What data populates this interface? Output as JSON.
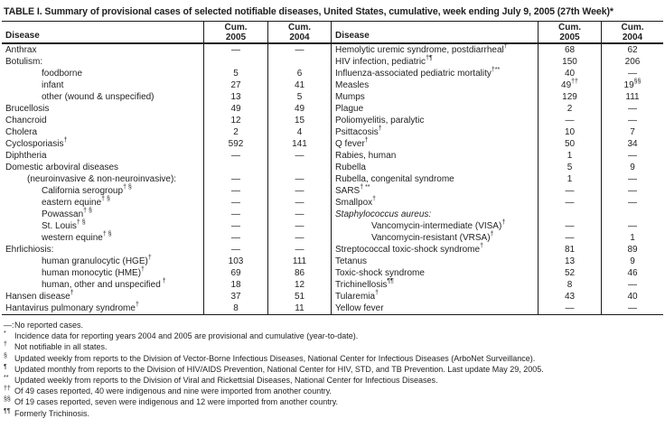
{
  "title": "TABLE I. Summary of provisional cases of selected notifiable diseases, United States, cumulative, week ending July 9, 2005 (27th Week)*",
  "table": {
    "header": {
      "disease_label": "Disease",
      "cum_label": "Cum.",
      "year_2005": "2005",
      "year_2004": "2004"
    },
    "left_rows": [
      {
        "name": "Anthrax",
        "indent": 0,
        "cum2005": "—",
        "cum2004": "—"
      },
      {
        "name": "Botulism:",
        "indent": 0,
        "cum2005": "",
        "cum2004": ""
      },
      {
        "name": "foodborne",
        "indent": 2,
        "cum2005": "5",
        "cum2004": "6"
      },
      {
        "name": "infant",
        "indent": 2,
        "cum2005": "27",
        "cum2004": "41"
      },
      {
        "name": "other (wound & unspecified)",
        "indent": 2,
        "cum2005": "13",
        "cum2004": "5"
      },
      {
        "name": "Brucellosis",
        "indent": 0,
        "cum2005": "49",
        "cum2004": "49"
      },
      {
        "name": "Chancroid",
        "indent": 0,
        "cum2005": "12",
        "cum2004": "15"
      },
      {
        "name": "Cholera",
        "indent": 0,
        "cum2005": "2",
        "cum2004": "4"
      },
      {
        "name": "Cyclosporiasis",
        "sup": "†",
        "indent": 0,
        "cum2005": "592",
        "cum2004": "141"
      },
      {
        "name": "Diphtheria",
        "indent": 0,
        "cum2005": "—",
        "cum2004": "—"
      },
      {
        "name": "Domestic arboviral diseases",
        "indent": 0,
        "cum2005": "",
        "cum2004": ""
      },
      {
        "name": "(neuroinvasive & non-neuroinvasive):",
        "indent": 1,
        "cum2005": "—",
        "cum2004": "—"
      },
      {
        "name": "California serogroup",
        "sup": "† §",
        "indent": 2,
        "cum2005": "—",
        "cum2004": "—"
      },
      {
        "name": "eastern equine",
        "sup": "† §",
        "indent": 2,
        "cum2005": "—",
        "cum2004": "—"
      },
      {
        "name": "Powassan",
        "sup": "† §",
        "indent": 2,
        "cum2005": "—",
        "cum2004": "—"
      },
      {
        "name": "St. Louis",
        "sup": "† §",
        "indent": 2,
        "cum2005": "—",
        "cum2004": "—"
      },
      {
        "name": "western equine",
        "sup": "† §",
        "indent": 2,
        "cum2005": "—",
        "cum2004": "—"
      },
      {
        "name": "Ehrlichiosis:",
        "indent": 0,
        "cum2005": "—",
        "cum2004": "—"
      },
      {
        "name": "human granulocytic (HGE)",
        "sup": "†",
        "indent": 2,
        "cum2005": "103",
        "cum2004": "111"
      },
      {
        "name": "human monocytic (HME)",
        "sup": "†",
        "indent": 2,
        "cum2005": "69",
        "cum2004": "86"
      },
      {
        "name": "human, other and unspecified",
        "sup": " †",
        "indent": 2,
        "cum2005": "18",
        "cum2004": "12"
      },
      {
        "name": "Hansen disease",
        "sup": "†",
        "indent": 0,
        "cum2005": "37",
        "cum2004": "51"
      },
      {
        "name": "Hantavirus pulmonary syndrome",
        "sup": "†",
        "indent": 0,
        "cum2005": "8",
        "cum2004": "11"
      }
    ],
    "right_rows": [
      {
        "name": "Hemolytic uremic syndrome, postdiarrheal",
        "sup": "†",
        "indent": 0,
        "cum2005": "68",
        "cum2004": "62"
      },
      {
        "name": "HIV infection, pediatric",
        "sup": "†¶",
        "indent": 0,
        "cum2005": "150",
        "cum2004": "206"
      },
      {
        "name": "Influenza-associated pediatric mortality",
        "sup": "†**",
        "indent": 0,
        "cum2005": "40",
        "cum2004": "—"
      },
      {
        "name": "Measles",
        "indent": 0,
        "cum2005": "49",
        "cum2005_sup": "††",
        "cum2004": "19",
        "cum2004_sup": "§§"
      },
      {
        "name": "Mumps",
        "indent": 0,
        "cum2005": "129",
        "cum2004": "111"
      },
      {
        "name": "Plague",
        "indent": 0,
        "cum2005": "2",
        "cum2004": "—"
      },
      {
        "name": "Poliomyelitis, paralytic",
        "indent": 0,
        "cum2005": "—",
        "cum2004": "—"
      },
      {
        "name": "Psittacosis",
        "sup": "†",
        "indent": 0,
        "cum2005": "10",
        "cum2004": "7"
      },
      {
        "name": "Q fever",
        "sup": "†",
        "indent": 0,
        "cum2005": "50",
        "cum2004": "34"
      },
      {
        "name": "Rabies, human",
        "indent": 0,
        "cum2005": "1",
        "cum2004": "—"
      },
      {
        "name": "Rubella",
        "indent": 0,
        "cum2005": "5",
        "cum2004": "9"
      },
      {
        "name": "Rubella, congenital syndrome",
        "indent": 0,
        "cum2005": "1",
        "cum2004": "—"
      },
      {
        "name": "SARS",
        "sup": "† **",
        "indent": 0,
        "cum2005": "—",
        "cum2004": "—"
      },
      {
        "name": "Smallpox",
        "sup": "†",
        "indent": 0,
        "cum2005": "—",
        "cum2004": "—"
      },
      {
        "name": "Staphylococcus aureus:",
        "italic": true,
        "indent": 0,
        "cum2005": "",
        "cum2004": ""
      },
      {
        "name": "Vancomycin-intermediate (VISA)",
        "sup": "†",
        "indent": 2,
        "cum2005": "—",
        "cum2004": "—"
      },
      {
        "name": "Vancomycin-resistant (VRSA)",
        "sup": "†",
        "indent": 2,
        "cum2005": "—",
        "cum2004": "1"
      },
      {
        "name": "Streptococcal toxic-shock syndrome",
        "sup": "†",
        "indent": 0,
        "cum2005": "81",
        "cum2004": "89"
      },
      {
        "name": "Tetanus",
        "indent": 0,
        "cum2005": "13",
        "cum2004": "9"
      },
      {
        "name": "Toxic-shock syndrome",
        "indent": 0,
        "cum2005": "52",
        "cum2004": "46"
      },
      {
        "name": "Trichinellosis",
        "sup": "¶¶",
        "indent": 0,
        "cum2005": "8",
        "cum2004": "—"
      },
      {
        "name": "Tularemia",
        "sup": "†",
        "indent": 0,
        "cum2005": "43",
        "cum2004": "40"
      },
      {
        "name": "Yellow fever",
        "indent": 0,
        "cum2005": "—",
        "cum2004": "—"
      }
    ]
  },
  "footnotes": [
    {
      "marker": "—:",
      "superscript": false,
      "text": "No reported cases."
    },
    {
      "marker": "*",
      "superscript": true,
      "text": "Incidence data for reporting years 2004 and 2005 are provisional and cumulative (year-to-date)."
    },
    {
      "marker": "†",
      "superscript": true,
      "text": "Not notifiable in all states."
    },
    {
      "marker": "§",
      "superscript": true,
      "text": "Updated weekly from reports to the Division of Vector-Borne Infectious Diseases, National Center for Infectious Diseases (ArboNet Surveillance)."
    },
    {
      "marker": "¶",
      "superscript": true,
      "text": "Updated monthly from reports to the Division of HIV/AIDS Prevention, National Center for HIV, STD, and TB Prevention. Last update May 29, 2005."
    },
    {
      "marker": "**",
      "superscript": true,
      "text": "Updated weekly from reports to the Division of Viral and Rickettsial Diseases, National Center for Infectious Diseases."
    },
    {
      "marker": "††",
      "superscript": true,
      "text": "Of 49 cases reported, 40 were indigenous and nine were imported from another country."
    },
    {
      "marker": "§§",
      "superscript": true,
      "text": "Of 19 cases reported, seven were indigenous and 12 were imported from another country."
    },
    {
      "marker": "¶¶",
      "superscript": true,
      "text": "Formerly Trichinosis."
    }
  ],
  "colors": {
    "text": "#1f1f1f",
    "rule": "#1a1a1a",
    "background": "#ffffff"
  }
}
